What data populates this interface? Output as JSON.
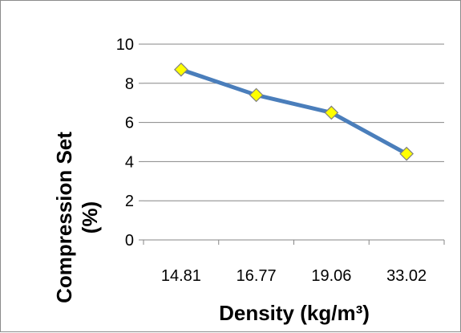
{
  "chart_data": {
    "type": "line",
    "categories": [
      "14.81",
      "16.77",
      "19.06",
      "33.02"
    ],
    "values": [
      8.7,
      7.4,
      6.5,
      4.4
    ],
    "xlabel": "Density (kg/m³)",
    "ylabel_lines": [
      "Compression Set",
      "(%)"
    ],
    "ylim": [
      0,
      10
    ],
    "yticks": [
      "0",
      "2",
      "4",
      "6",
      "8",
      "10"
    ],
    "grid": "horizontal",
    "legend": "none",
    "line_color": "#4a7ebb",
    "marker_fill": "#ffff00",
    "marker_stroke": "#7f7f7f",
    "marker_shape": "diamond"
  }
}
